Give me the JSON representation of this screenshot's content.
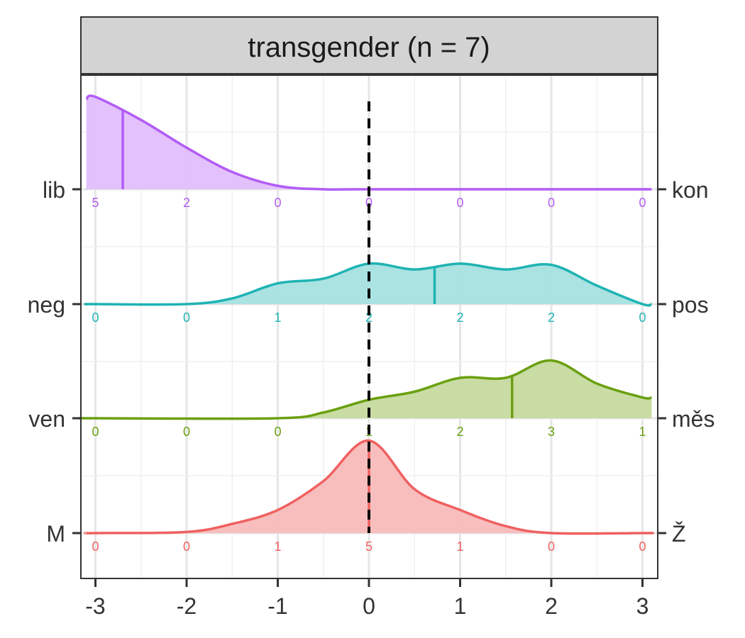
{
  "chart_data": {
    "type": "area",
    "title": "transgender (n = 7)",
    "xlim": [
      -3.1,
      3.1
    ],
    "x_ticks": [
      -3,
      -2,
      -1,
      0,
      1,
      2,
      3
    ],
    "reference_line_x": 0,
    "grid": true,
    "series": [
      {
        "left_label": "M",
        "right_label": "Ž",
        "color": "#F06060",
        "fill": "#F8BBBB",
        "mean": 0,
        "counts": [
          0,
          0,
          1,
          5,
          1,
          0,
          0
        ],
        "density": [
          [
            -3,
            0
          ],
          [
            -2,
            0.01
          ],
          [
            -1.5,
            0.08
          ],
          [
            -1,
            0.2
          ],
          [
            -0.5,
            0.45
          ],
          [
            0,
            0.8
          ],
          [
            0.5,
            0.38
          ],
          [
            1,
            0.2
          ],
          [
            1.5,
            0.06
          ],
          [
            2,
            0
          ],
          [
            3,
            0
          ]
        ]
      },
      {
        "left_label": "ven",
        "right_label": "měs",
        "color": "#6AA010",
        "fill": "#C6DA9F",
        "mean": 1.57,
        "counts": [
          0,
          0,
          0,
          1,
          2,
          3,
          1
        ],
        "density": [
          [
            -3,
            0
          ],
          [
            -1,
            0
          ],
          [
            -0.5,
            0.05
          ],
          [
            0,
            0.16
          ],
          [
            0.5,
            0.23
          ],
          [
            1,
            0.35
          ],
          [
            1.5,
            0.35
          ],
          [
            2,
            0.5
          ],
          [
            2.5,
            0.3
          ],
          [
            3,
            0.18
          ],
          [
            3.1,
            0.18
          ]
        ]
      },
      {
        "left_label": "neg",
        "right_label": "pos",
        "color": "#1FB3B3",
        "fill": "#A6E0E0",
        "mean": 0.72,
        "counts": [
          0,
          0,
          1,
          2,
          2,
          2,
          0
        ],
        "density": [
          [
            -3,
            0
          ],
          [
            -2,
            0
          ],
          [
            -1.5,
            0.05
          ],
          [
            -1,
            0.18
          ],
          [
            -0.5,
            0.22
          ],
          [
            0,
            0.35
          ],
          [
            0.5,
            0.3
          ],
          [
            1,
            0.35
          ],
          [
            1.5,
            0.3
          ],
          [
            2,
            0.34
          ],
          [
            2.5,
            0.16
          ],
          [
            3,
            0
          ],
          [
            3.1,
            0
          ]
        ]
      },
      {
        "left_label": "lib",
        "right_label": "kon",
        "color": "#B25CF5",
        "fill": "#E2BEFC",
        "mean": -2.7,
        "counts": [
          5,
          2,
          0,
          0,
          0,
          0,
          0
        ],
        "density": [
          [
            -3.1,
            0.78
          ],
          [
            -3,
            0.8
          ],
          [
            -2.5,
            0.6
          ],
          [
            -2,
            0.36
          ],
          [
            -1.5,
            0.15
          ],
          [
            -1,
            0.03
          ],
          [
            -0.5,
            0
          ],
          [
            0,
            0
          ],
          [
            3.1,
            0
          ]
        ]
      }
    ]
  }
}
